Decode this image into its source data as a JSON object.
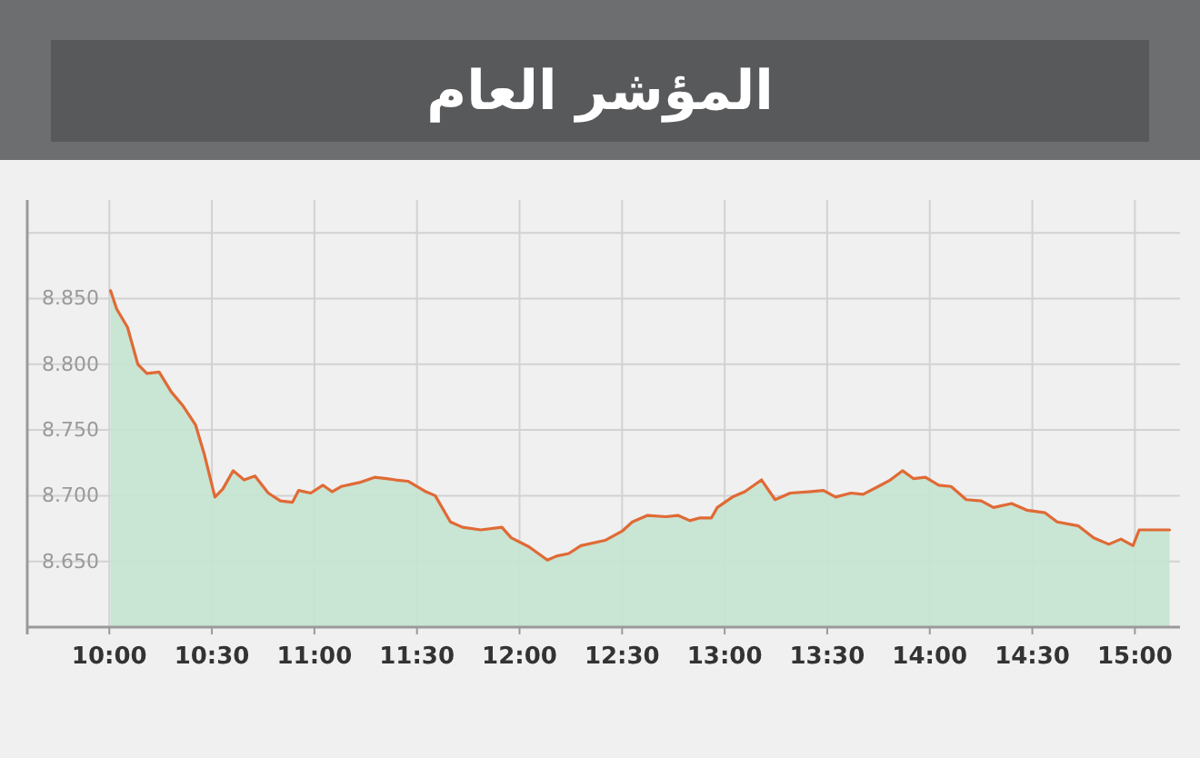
{
  "chart_data": {
    "type": "area",
    "title": "المؤشر العام",
    "x": [
      10.006,
      10.036,
      10.089,
      10.139,
      10.183,
      10.243,
      10.302,
      10.361,
      10.42,
      10.464,
      10.515,
      10.553,
      10.604,
      10.657,
      10.71,
      10.775,
      10.834,
      10.893,
      10.923,
      10.982,
      11.041,
      11.086,
      11.13,
      11.219,
      11.293,
      11.352,
      11.396,
      11.456,
      11.544,
      11.589,
      11.663,
      11.722,
      11.811,
      11.914,
      11.959,
      12.047,
      12.136,
      12.18,
      12.24,
      12.299,
      12.417,
      12.5,
      12.55,
      12.624,
      12.713,
      12.772,
      12.831,
      12.876,
      12.935,
      12.964,
      13.038,
      13.098,
      13.18,
      13.246,
      13.32,
      13.408,
      13.482,
      13.541,
      13.615,
      13.675,
      13.749,
      13.808,
      13.867,
      13.92,
      13.979,
      14.044,
      14.104,
      14.178,
      14.251,
      14.311,
      14.399,
      14.473,
      14.562,
      14.621,
      14.725,
      14.799,
      14.873,
      14.932,
      14.991,
      15.021,
      15.169
    ],
    "series": [
      {
        "color": "#e06a35",
        "values": [
          8.856,
          8.842,
          8.828,
          8.8,
          8.793,
          8.794,
          8.779,
          8.768,
          8.754,
          8.731,
          8.699,
          8.705,
          8.719,
          8.712,
          8.715,
          8.702,
          8.696,
          8.695,
          8.704,
          8.702,
          8.708,
          8.703,
          8.707,
          8.71,
          8.714,
          8.713,
          8.712,
          8.711,
          8.703,
          8.7,
          8.68,
          8.676,
          8.674,
          8.676,
          8.668,
          8.661,
          8.651,
          8.654,
          8.656,
          8.662,
          8.666,
          8.673,
          8.68,
          8.685,
          8.684,
          8.685,
          8.681,
          8.683,
          8.683,
          8.691,
          8.699,
          8.703,
          8.712,
          8.697,
          8.702,
          8.703,
          8.704,
          8.699,
          8.702,
          8.701,
          8.707,
          8.712,
          8.719,
          8.713,
          8.714,
          8.708,
          8.707,
          8.697,
          8.696,
          8.691,
          8.694,
          8.689,
          8.687,
          8.68,
          8.677,
          8.668,
          8.663,
          8.667,
          8.662,
          8.674,
          8.674
        ]
      }
    ],
    "xlim": [
      9.6,
      15.22
    ],
    "xticks": [
      {
        "value": 10,
        "label": "10:00"
      },
      {
        "value": 10.5,
        "label": "10:30"
      },
      {
        "value": 11,
        "label": "11:00"
      },
      {
        "value": 11.5,
        "label": "11:30"
      },
      {
        "value": 12,
        "label": "12:00"
      },
      {
        "value": 12.5,
        "label": "12:30"
      },
      {
        "value": 13,
        "label": "13:00"
      },
      {
        "value": 13.5,
        "label": "13:30"
      },
      {
        "value": 14,
        "label": "14:00"
      },
      {
        "value": 14.5,
        "label": "14:30"
      },
      {
        "value": 15,
        "label": "15:00"
      }
    ],
    "ylim": [
      8.6,
      8.925
    ],
    "yticks": [
      {
        "value": 8.6,
        "label": null
      },
      {
        "value": 8.65,
        "label": "8.650"
      },
      {
        "value": 8.7,
        "label": "8.700"
      },
      {
        "value": 8.75,
        "label": "8.750"
      },
      {
        "value": 8.8,
        "label": "8.800"
      },
      {
        "value": 8.85,
        "label": "8.850"
      },
      {
        "value": 8.9,
        "label": null
      }
    ],
    "grid": true
  }
}
